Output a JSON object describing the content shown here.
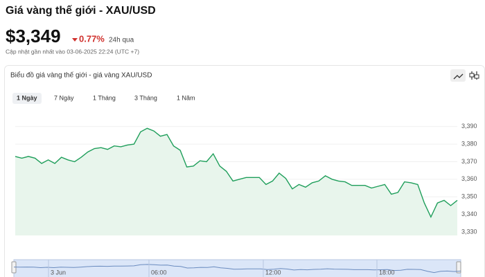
{
  "header": {
    "title": "Giá vàng thế giới - XAU/USD",
    "price": "$3,349",
    "change": "0.77%",
    "period": "24h qua",
    "updated": "Cập nhật gần nhất vào 03-06-2025 22:24 (UTC +7)"
  },
  "card": {
    "title": "Biểu đồ giá vàng thế giới - giá vàng XAU/USD",
    "tabs": [
      "1 Ngày",
      "7 Ngày",
      "1 Tháng",
      "3 Tháng",
      "1 Năm"
    ]
  },
  "navigator": {
    "labels": [
      "3 Jun",
      "06:00",
      "12:00",
      "18:00"
    ]
  },
  "chart_data": {
    "type": "area",
    "color": "#1e9e5a",
    "grid": true,
    "values": [
      3373,
      3372,
      3373,
      3372,
      3369,
      3371,
      3369,
      3372.5,
      3371,
      3370,
      3372.5,
      3375.5,
      3377.5,
      3378,
      3377,
      3379,
      3378.5,
      3379.5,
      3380,
      3387,
      3389,
      3387.5,
      3384.5,
      3385.5,
      3379,
      3376.5,
      3367,
      3367.5,
      3370.5,
      3370,
      3374.5,
      3367.5,
      3364.5,
      3359,
      3360,
      3361,
      3361,
      3361,
      3357,
      3359,
      3363.5,
      3360.5,
      3354.5,
      3357,
      3355.5,
      3358,
      3359,
      3362,
      3360,
      3359,
      3358.5,
      3356.5,
      3356.5,
      3356.5,
      3355,
      3356,
      3357,
      3351.5,
      3352.5,
      3358.5,
      3358,
      3357,
      3346.5,
      3338.5,
      3346.5,
      3348,
      3345,
      3348
    ],
    "ylim": [
      3328,
      3397
    ],
    "yticks": [
      {
        "value": 3330,
        "label": "3,330"
      },
      {
        "value": 3340,
        "label": "3,340"
      },
      {
        "value": 3350,
        "label": "3,350"
      },
      {
        "value": 3360,
        "label": "3,360"
      },
      {
        "value": 3370,
        "label": "3,370"
      },
      {
        "value": 3380,
        "label": "3,380"
      },
      {
        "value": 3390,
        "label": "3,390"
      }
    ]
  }
}
